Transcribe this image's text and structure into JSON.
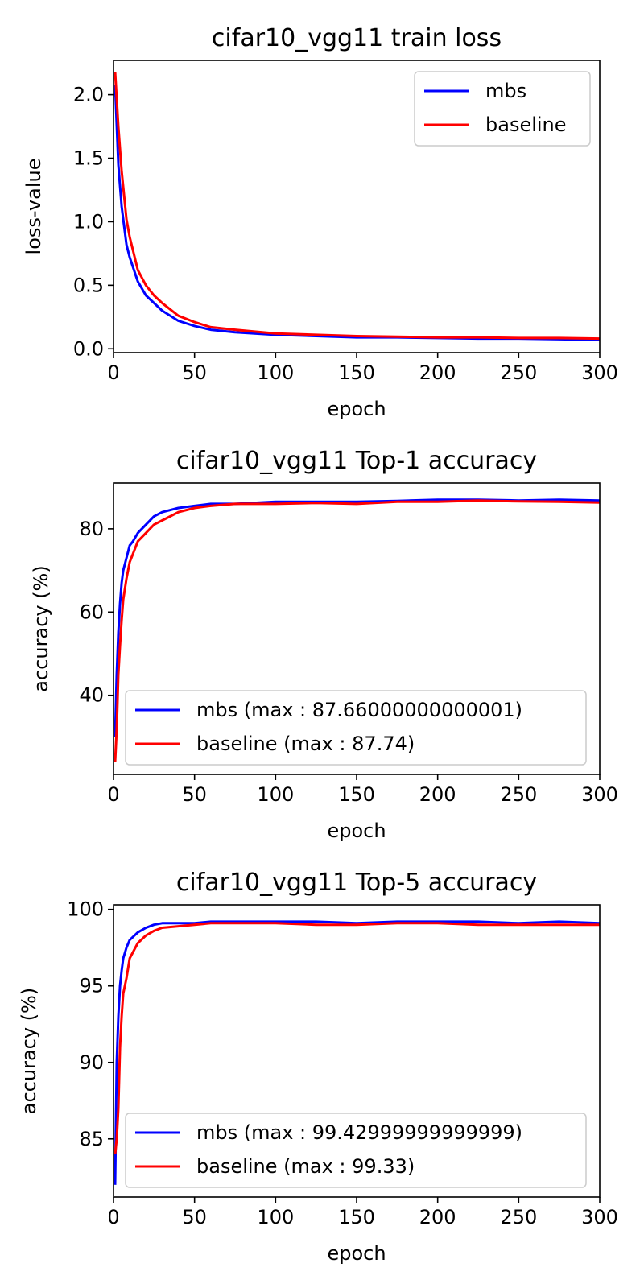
{
  "chart_data": [
    {
      "type": "line",
      "title": "cifar10_vgg11 train loss",
      "xlabel": "epoch",
      "ylabel": "loss-value",
      "xlim": [
        0,
        300
      ],
      "ylim": [
        -0.03,
        2.27
      ],
      "xticks": [
        0,
        50,
        100,
        150,
        200,
        250,
        300
      ],
      "yticks": [
        0.0,
        0.5,
        1.0,
        1.5,
        2.0
      ],
      "ytick_labels": [
        "0.0",
        "0.5",
        "1.0",
        "1.5",
        "2.0"
      ],
      "legend_position": "top-right",
      "grid": false,
      "series": [
        {
          "name": "mbs",
          "color": "#0000ff",
          "x": [
            1,
            3,
            5,
            8,
            10,
            15,
            20,
            25,
            30,
            40,
            50,
            60,
            75,
            100,
            125,
            150,
            175,
            200,
            225,
            250,
            275,
            300
          ],
          "values": [
            2.08,
            1.45,
            1.12,
            0.82,
            0.72,
            0.53,
            0.42,
            0.36,
            0.3,
            0.22,
            0.18,
            0.15,
            0.13,
            0.11,
            0.1,
            0.09,
            0.09,
            0.085,
            0.08,
            0.08,
            0.075,
            0.07
          ]
        },
        {
          "name": "baseline",
          "color": "#ff0000",
          "x": [
            1,
            3,
            5,
            8,
            10,
            15,
            20,
            25,
            30,
            40,
            50,
            60,
            75,
            100,
            125,
            150,
            175,
            200,
            225,
            250,
            275,
            300
          ],
          "values": [
            2.18,
            1.75,
            1.4,
            1.02,
            0.88,
            0.62,
            0.5,
            0.42,
            0.36,
            0.26,
            0.21,
            0.17,
            0.15,
            0.12,
            0.11,
            0.1,
            0.095,
            0.09,
            0.09,
            0.085,
            0.085,
            0.08
          ]
        }
      ]
    },
    {
      "type": "line",
      "title": "cifar10_vgg11 Top-1 accuracy",
      "xlabel": "epoch",
      "ylabel": "accuracy (%)",
      "xlim": [
        0,
        300
      ],
      "ylim": [
        21,
        91
      ],
      "xticks": [
        0,
        50,
        100,
        150,
        200,
        250,
        300
      ],
      "yticks": [
        40,
        60,
        80
      ],
      "ytick_labels": [
        "40",
        "60",
        "80"
      ],
      "legend_position": "bottom",
      "grid": false,
      "series": [
        {
          "name": "mbs (max : 87.66000000000001)",
          "color": "#0000ff",
          "x": [
            1,
            2,
            3,
            4,
            5,
            6,
            8,
            10,
            12,
            15,
            20,
            25,
            30,
            35,
            40,
            50,
            60,
            75,
            100,
            125,
            150,
            175,
            200,
            225,
            250,
            275,
            300
          ],
          "values": [
            30,
            45,
            55,
            62,
            67,
            70,
            73,
            76,
            77,
            79,
            81,
            83,
            84,
            84.5,
            85,
            85.5,
            86,
            86,
            86.5,
            86.5,
            86.5,
            86.7,
            87,
            87,
            86.8,
            87,
            86.8
          ]
        },
        {
          "name": "baseline (max : 87.74)",
          "color": "#ff0000",
          "x": [
            1,
            2,
            3,
            4,
            5,
            6,
            8,
            10,
            12,
            15,
            20,
            25,
            30,
            35,
            40,
            50,
            60,
            75,
            100,
            125,
            150,
            175,
            200,
            225,
            250,
            275,
            300
          ],
          "values": [
            24,
            32,
            45,
            52,
            58,
            63,
            68,
            72,
            74,
            77,
            79,
            81,
            82,
            83,
            84,
            85,
            85.5,
            86,
            86,
            86.2,
            86,
            86.5,
            86.5,
            86.8,
            86.6,
            86.5,
            86.3
          ]
        }
      ]
    },
    {
      "type": "line",
      "title": "cifar10_vgg11 Top-5 accuracy",
      "xlabel": "epoch",
      "ylabel": "accuracy (%)",
      "xlim": [
        0,
        300
      ],
      "ylim": [
        81.2,
        100.3
      ],
      "xticks": [
        0,
        50,
        100,
        150,
        200,
        250,
        300
      ],
      "yticks": [
        85,
        90,
        95,
        100
      ],
      "ytick_labels": [
        "85",
        "90",
        "95",
        "100"
      ],
      "legend_position": "bottom",
      "grid": false,
      "series": [
        {
          "name": "mbs (max : 99.42999999999999)",
          "color": "#0000ff",
          "x": [
            1,
            2,
            3,
            4,
            5,
            6,
            8,
            10,
            15,
            20,
            25,
            30,
            40,
            50,
            60,
            75,
            100,
            125,
            150,
            175,
            200,
            225,
            250,
            275,
            300
          ],
          "values": [
            82,
            90,
            93,
            95,
            96,
            96.8,
            97.5,
            98,
            98.5,
            98.8,
            99,
            99.1,
            99.1,
            99.1,
            99.2,
            99.2,
            99.2,
            99.2,
            99.1,
            99.2,
            99.2,
            99.2,
            99.1,
            99.2,
            99.1
          ]
        },
        {
          "name": "baseline (max : 99.33)",
          "color": "#ff0000",
          "x": [
            1,
            2,
            3,
            4,
            5,
            6,
            8,
            10,
            15,
            20,
            25,
            30,
            40,
            50,
            60,
            75,
            100,
            125,
            150,
            175,
            200,
            225,
            250,
            275,
            300
          ],
          "values": [
            84,
            85,
            87,
            91,
            93,
            94.5,
            95.5,
            96.8,
            97.8,
            98.3,
            98.6,
            98.8,
            98.9,
            99,
            99.1,
            99.1,
            99.1,
            99,
            99,
            99.1,
            99.1,
            99,
            99,
            99,
            99
          ]
        }
      ]
    }
  ]
}
